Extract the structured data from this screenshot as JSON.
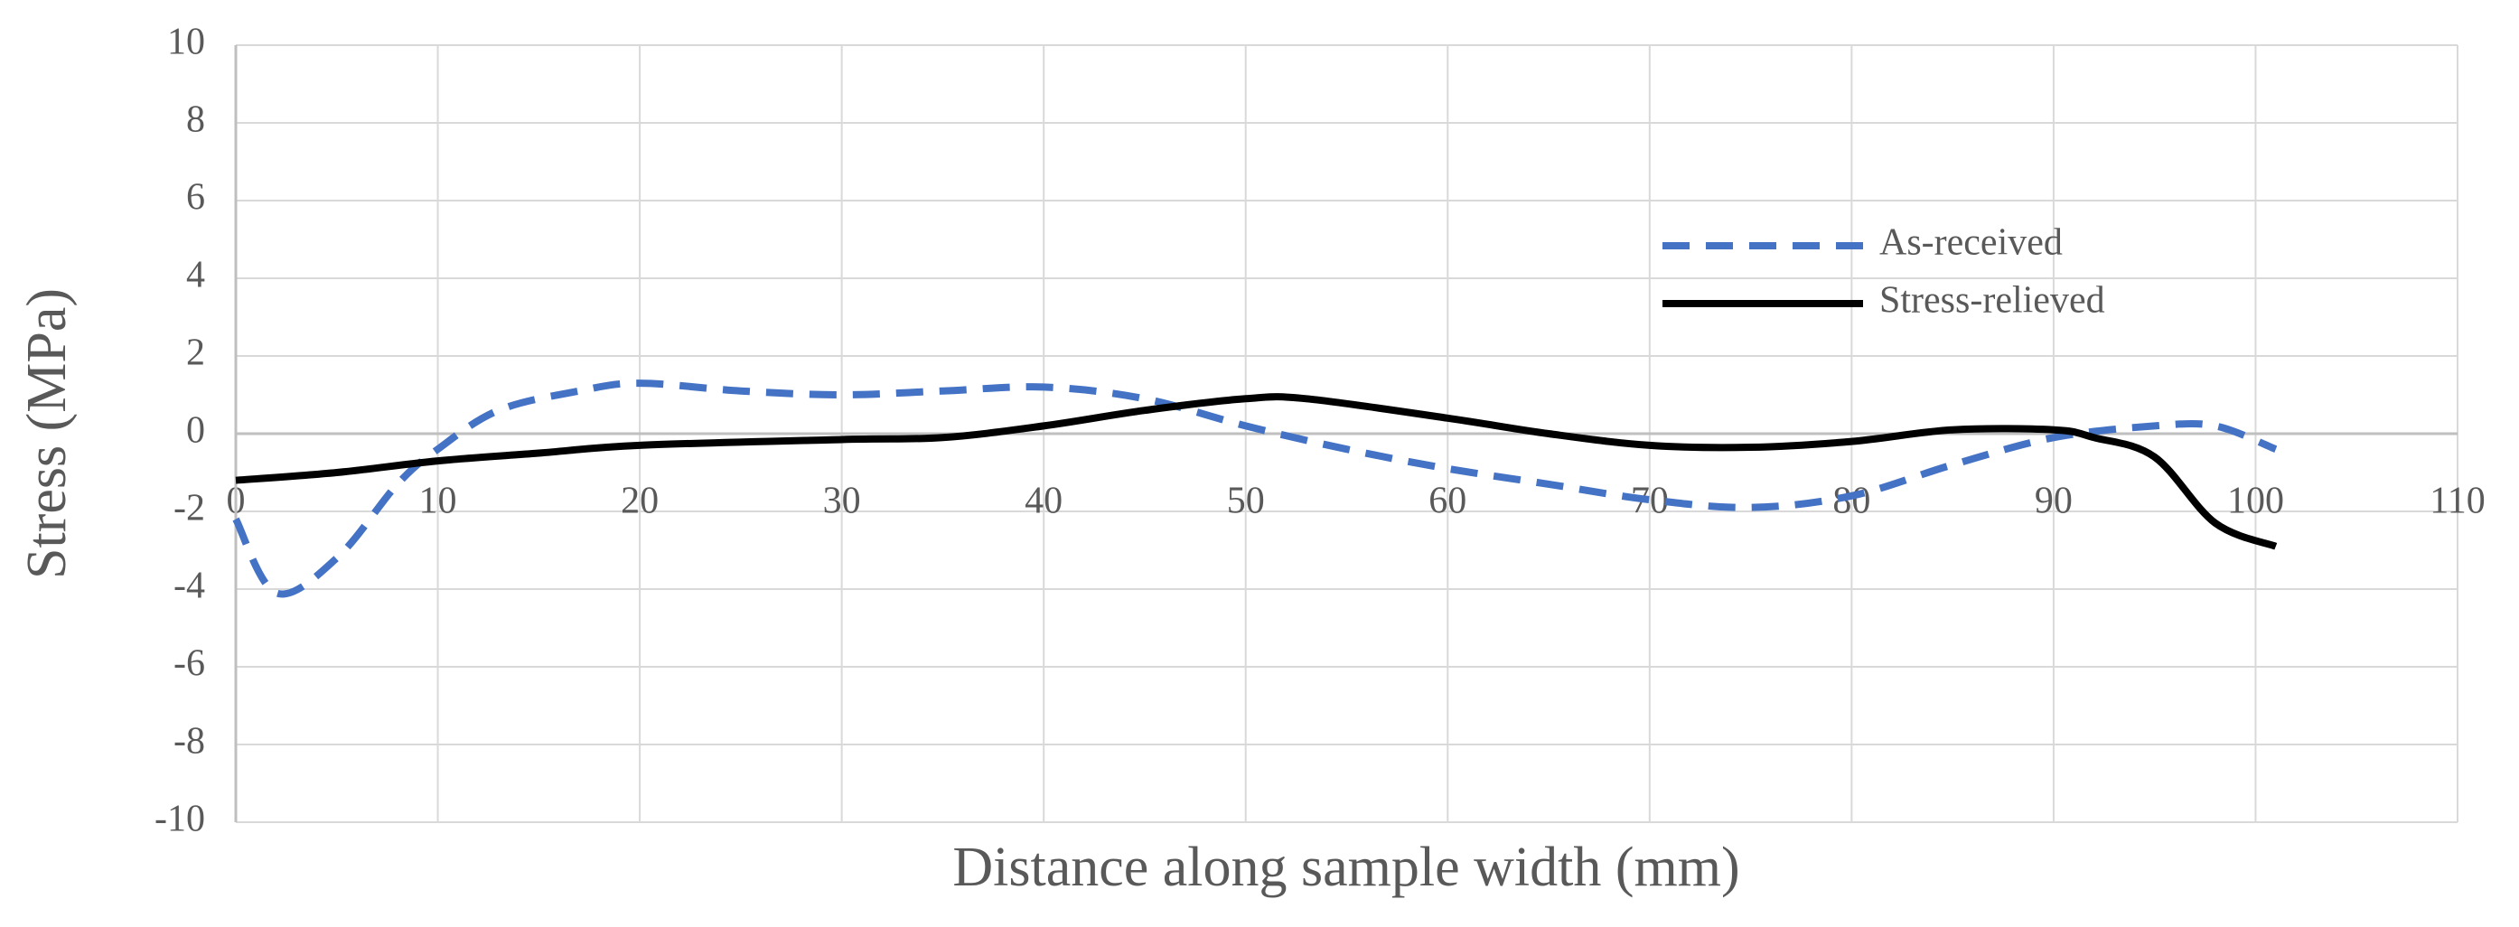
{
  "chart_data": {
    "type": "line",
    "xlabel": "Distance along sample width (mm)",
    "ylabel": "Stress (MPa)",
    "xlim": [
      0,
      110
    ],
    "xticks": [
      0,
      10,
      20,
      30,
      40,
      50,
      60,
      70,
      80,
      90,
      100,
      110
    ],
    "ylim": [
      -10,
      10
    ],
    "yticks": [
      -10,
      -8,
      -6,
      -4,
      -2,
      0,
      2,
      4,
      6,
      8,
      10
    ],
    "grid": true,
    "legend": "upper right",
    "series": [
      {
        "name": "As-received",
        "color": "#4472c4",
        "linestyle": "dashed",
        "x": [
          0,
          2,
          5,
          8,
          10,
          13,
          17,
          20,
          25,
          30,
          35,
          40,
          45,
          50,
          55,
          60,
          65,
          70,
          75,
          80,
          85,
          90,
          95,
          98,
          101
        ],
        "values": [
          -2.2,
          -4.1,
          -3.2,
          -1.3,
          -0.4,
          0.6,
          1.1,
          1.3,
          1.1,
          1.0,
          1.1,
          1.2,
          0.9,
          0.2,
          -0.4,
          -0.9,
          -1.3,
          -1.7,
          -1.9,
          -1.6,
          -0.8,
          -0.1,
          0.2,
          0.2,
          -0.4
        ]
      },
      {
        "name": "Stress-relieved",
        "color": "#000000",
        "linestyle": "solid",
        "x": [
          0,
          5,
          10,
          15,
          20,
          30,
          35,
          40,
          45,
          50,
          53,
          60,
          65,
          70,
          75,
          80,
          85,
          90,
          92,
          95,
          98,
          101
        ],
        "values": [
          -1.2,
          -1.0,
          -0.7,
          -0.5,
          -0.3,
          -0.15,
          -0.1,
          0.2,
          0.6,
          0.9,
          0.9,
          0.4,
          0.0,
          -0.3,
          -0.35,
          -0.2,
          0.1,
          0.1,
          -0.1,
          -0.6,
          -2.3,
          -2.9
        ]
      }
    ]
  }
}
